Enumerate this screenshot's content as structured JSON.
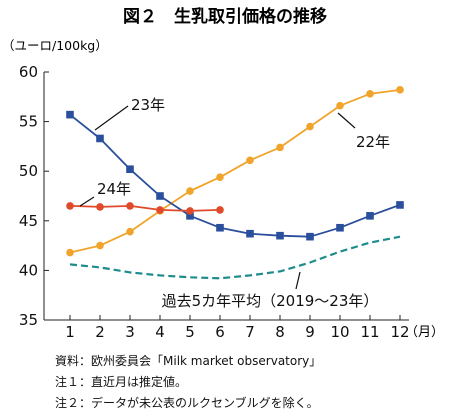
{
  "chart_data": {
    "type": "line",
    "title": "図２　生乳取引価格の推移",
    "ylabel": "（ユーロ/100kg）",
    "xlabel": "（月）",
    "categories": [
      "1",
      "2",
      "3",
      "4",
      "5",
      "6",
      "7",
      "8",
      "9",
      "10",
      "11",
      "12"
    ],
    "yticks": [
      "35",
      "40",
      "45",
      "50",
      "55",
      "60"
    ],
    "ylim": [
      35,
      60
    ],
    "grid": false,
    "series": [
      {
        "name": "22年",
        "color": "#f0a42b",
        "marker": "circle",
        "dash": false,
        "values": [
          41.8,
          42.5,
          43.9,
          46.0,
          48.0,
          49.4,
          51.1,
          52.4,
          54.5,
          56.6,
          57.8,
          58.2
        ]
      },
      {
        "name": "23年",
        "color": "#2a4f9c",
        "marker": "square",
        "dash": false,
        "values": [
          55.7,
          53.3,
          50.2,
          47.5,
          45.5,
          44.3,
          43.7,
          43.5,
          43.4,
          44.3,
          45.5,
          46.6
        ]
      },
      {
        "name": "24年",
        "color": "#e04a2a",
        "marker": "circle",
        "dash": false,
        "values": [
          46.5,
          46.4,
          46.5,
          46.1,
          46.0,
          46.1,
          null,
          null,
          null,
          null,
          null,
          null
        ]
      },
      {
        "name": "過去5カ年平均（2019～23年）",
        "color": "#1e8c8c",
        "marker": "none",
        "dash": true,
        "values": [
          40.6,
          40.3,
          39.8,
          39.5,
          39.3,
          39.2,
          39.5,
          39.9,
          40.8,
          41.9,
          42.8,
          43.4
        ]
      }
    ],
    "notes": [
      "資料：欧州委員会「Milk market observatory」",
      "注１：直近月は推定値。",
      "注２：データが未公表のルクセンブルグを除く。"
    ]
  }
}
